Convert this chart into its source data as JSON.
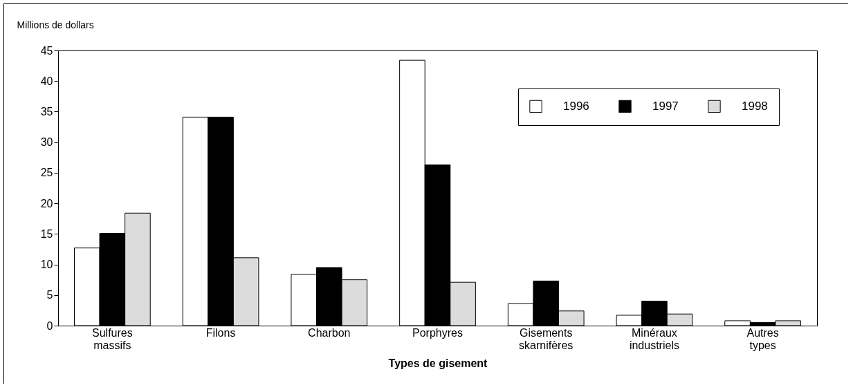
{
  "chart_data": {
    "type": "bar",
    "xlabel": "Types de gisement",
    "ylabel": "Millions de dollars",
    "categories": [
      "Sulfures massifs",
      "Filons",
      "Charbon",
      "Porphyres",
      "Gisements skarnifères",
      "Minéraux industriels",
      "Autres types"
    ],
    "series": [
      {
        "name": "1996",
        "color": "#ffffff",
        "values": [
          12.7,
          34.1,
          8.4,
          43.4,
          3.6,
          1.7,
          0.8
        ]
      },
      {
        "name": "1997",
        "color": "#000000",
        "values": [
          15.1,
          34.1,
          9.5,
          26.3,
          7.3,
          4.0,
          0.5
        ]
      },
      {
        "name": "1998",
        "color": "#dcdcdc",
        "values": [
          18.4,
          11.1,
          7.5,
          7.1,
          2.4,
          1.9,
          0.8
        ]
      }
    ],
    "ylim": [
      0,
      45
    ],
    "yticks": [
      0,
      5,
      10,
      15,
      20,
      25,
      30,
      35,
      40,
      45
    ],
    "grid": false,
    "legend": "top right"
  }
}
